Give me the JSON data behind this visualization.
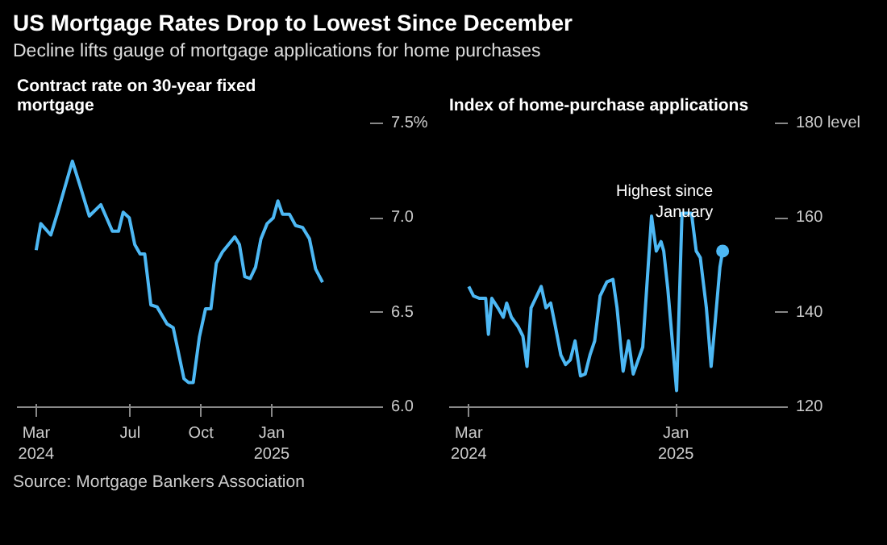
{
  "chart_data": [
    {
      "type": "line",
      "title": "US Mortgage Rates Drop to Lowest Since December",
      "subtitle": "Decline lifts gauge of mortgage applications for home purchases",
      "ylabel": "Contract rate on 30-year fixed mortgage",
      "x": [
        "2024-03-01",
        "2024-03-07",
        "2024-03-20",
        "2024-03-29",
        "2024-04-17",
        "2024-04-27",
        "2024-05-09",
        "2024-05-24",
        "2024-06-08",
        "2024-06-16",
        "2024-06-22",
        "2024-06-30",
        "2024-07-07",
        "2024-07-14",
        "2024-07-20",
        "2024-07-28",
        "2024-08-05",
        "2024-08-18",
        "2024-08-26",
        "2024-09-09",
        "2024-09-15",
        "2024-09-21",
        "2024-09-29",
        "2024-10-07",
        "2024-10-14",
        "2024-10-21",
        "2024-10-29",
        "2024-11-14",
        "2024-11-20",
        "2024-11-27",
        "2024-12-04",
        "2024-12-11",
        "2024-12-18",
        "2024-12-26",
        "2025-01-03",
        "2025-01-09",
        "2025-01-15",
        "2025-01-24",
        "2025-02-01",
        "2025-02-10",
        "2025-02-19",
        "2025-02-27",
        "2025-03-08"
      ],
      "series": [
        {
          "color": "#4db8f4",
          "values": [
            6.83,
            6.97,
            6.91,
            7.03,
            7.3,
            7.17,
            7.01,
            7.07,
            6.93,
            6.93,
            7.03,
            7.0,
            6.86,
            6.81,
            6.81,
            6.54,
            6.53,
            6.44,
            6.42,
            6.15,
            6.13,
            6.13,
            6.37,
            6.52,
            6.52,
            6.76,
            6.82,
            6.9,
            6.86,
            6.69,
            6.68,
            6.74,
            6.89,
            6.97,
            7.0,
            7.09,
            7.02,
            7.02,
            6.96,
            6.95,
            6.89,
            6.73,
            6.66
          ]
        }
      ],
      "xlim": [
        "2024-02-05",
        "2025-05-13"
      ],
      "xticks": [
        {
          "value": "2024-03-01",
          "label": "Mar\n2024"
        },
        {
          "value": "2024-07-01",
          "label": "Jul"
        },
        {
          "value": "2024-10-01",
          "label": "Oct"
        },
        {
          "value": "2025-01-01",
          "label": "Jan\n2025"
        }
      ],
      "ylim": [
        6.0,
        7.5
      ],
      "yticks": [
        {
          "value": 6.0,
          "label": "6.0"
        },
        {
          "value": 6.5,
          "label": "6.5"
        },
        {
          "value": 7.0,
          "label": "7.0"
        },
        {
          "value": 7.5,
          "label": "7.5%"
        }
      ],
      "grid": false,
      "annotations": [
        "Source: Mortgage Bankers Association"
      ]
    },
    {
      "type": "line",
      "ylabel": "Index of home-purchase applications",
      "x": [
        "2024-03-01",
        "2024-03-08",
        "2024-03-17",
        "2024-03-26",
        "2024-03-30",
        "2024-04-04",
        "2024-04-13",
        "2024-04-21",
        "2024-04-26",
        "2024-05-03",
        "2024-05-13",
        "2024-05-20",
        "2024-05-26",
        "2024-06-01",
        "2024-06-16",
        "2024-06-23",
        "2024-06-30",
        "2024-07-07",
        "2024-07-15",
        "2024-07-22",
        "2024-07-29",
        "2024-08-05",
        "2024-08-13",
        "2024-08-20",
        "2024-08-27",
        "2024-09-03",
        "2024-09-11",
        "2024-09-21",
        "2024-09-30",
        "2024-10-06",
        "2024-10-15",
        "2024-10-23",
        "2024-10-30",
        "2024-11-13",
        "2024-11-26",
        "2024-12-03",
        "2024-12-10",
        "2024-12-14",
        "2024-12-20",
        "2025-01-02",
        "2025-01-10",
        "2025-01-17",
        "2025-01-24",
        "2025-01-31",
        "2025-02-06",
        "2025-02-15",
        "2025-02-22",
        "2025-02-28",
        "2025-03-07",
        "2025-03-11"
      ],
      "series": [
        {
          "color": "#4db8f4",
          "values": [
            145.5,
            143.5,
            143,
            143,
            135.4,
            143,
            141,
            139,
            142,
            139,
            137,
            135,
            128.6,
            141,
            145.5,
            141,
            142,
            137,
            131,
            129,
            130,
            134,
            126.6,
            127,
            131,
            134,
            143.5,
            146.5,
            147,
            141,
            127.6,
            134,
            127,
            132.7,
            160.4,
            153,
            155,
            153,
            145,
            123.5,
            161,
            161,
            161,
            153,
            151.6,
            141,
            128.6,
            138,
            149.6,
            153
          ]
        }
      ],
      "xlim": [
        "2024-02-01",
        "2025-06-01"
      ],
      "xticks": [
        {
          "value": "2024-03-01",
          "label": "Mar\n2024"
        },
        {
          "value": "2025-01-01",
          "label": "Jan\n2025"
        }
      ],
      "ylim": [
        120,
        180
      ],
      "yticks": [
        {
          "value": 120,
          "label": "120"
        },
        {
          "value": 140,
          "label": "140"
        },
        {
          "value": 160,
          "label": "160"
        },
        {
          "value": 180,
          "label": "180 level"
        }
      ],
      "grid": false,
      "annotations": [
        {
          "text": "Highest since January",
          "x": "2025-03-11",
          "y": 153
        }
      ]
    }
  ]
}
